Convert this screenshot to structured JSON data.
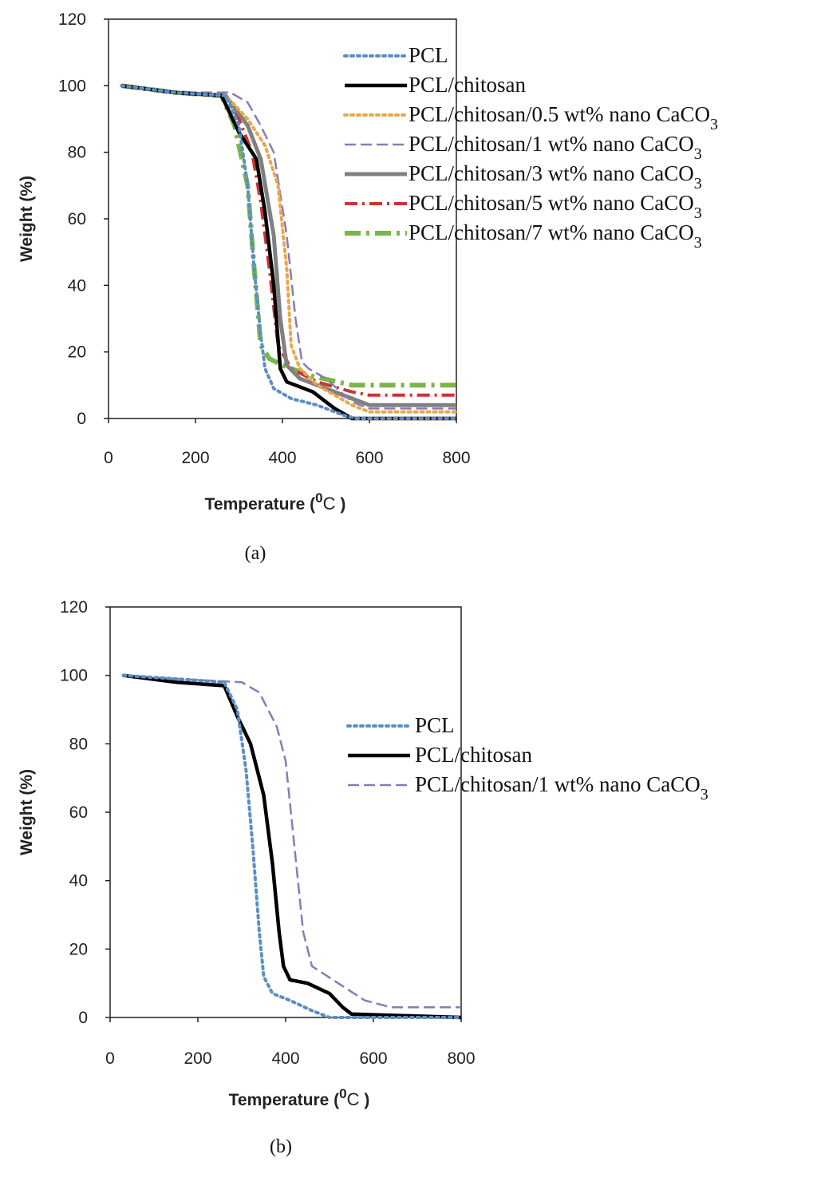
{
  "chart_data": [
    {
      "type": "line",
      "panel_label": "(a)",
      "xlabel": "Temperature (",
      "xlabel_sup": "0",
      "xlabel_unit": "C",
      "xlabel_close": ")",
      "ylabel": "Weight (%)",
      "xlim": [
        0,
        800
      ],
      "ylim": [
        0,
        120
      ],
      "xticks": [
        "0",
        "200",
        "400",
        "600",
        "800"
      ],
      "yticks": [
        "0",
        "20",
        "40",
        "60",
        "80",
        "100",
        "120"
      ],
      "grid": false,
      "legend_position": "top-right",
      "series": [
        {
          "name": "PCL",
          "name_sub": "",
          "color": "#5b8fc4",
          "dash": "dot",
          "x": [
            30,
            150,
            270,
            300,
            320,
            335,
            350,
            360,
            380,
            420,
            480,
            540,
            570,
            800
          ],
          "y": [
            100,
            98,
            97,
            88,
            70,
            45,
            25,
            15,
            9,
            6,
            4,
            1,
            0,
            0
          ]
        },
        {
          "name": "PCL/chitosan",
          "name_sub": "",
          "color": "#000000",
          "dash": "solid",
          "x": [
            30,
            150,
            260,
            300,
            340,
            360,
            380,
            395,
            410,
            430,
            470,
            520,
            560,
            800
          ],
          "y": [
            100,
            98,
            97,
            86,
            78,
            62,
            40,
            15,
            11,
            10,
            8,
            3,
            0,
            0
          ]
        },
        {
          "name": "PCL/chitosan/0.5 wt% nano CaCO",
          "name_sub": "3",
          "color": "#e8a84a",
          "dash": "dot",
          "x": [
            30,
            150,
            270,
            320,
            360,
            390,
            410,
            420,
            440,
            480,
            560,
            600,
            800
          ],
          "y": [
            100,
            98,
            97,
            90,
            82,
            70,
            45,
            22,
            15,
            10,
            4,
            2,
            2
          ]
        },
        {
          "name": "PCL/chitosan/1 wt% nano CaCO",
          "name_sub": "3",
          "color": "#8a7ab8",
          "dash": "dash",
          "x": [
            30,
            150,
            280,
            320,
            350,
            380,
            410,
            430,
            445,
            460,
            500,
            560,
            600,
            800
          ],
          "y": [
            100,
            98,
            98,
            95,
            88,
            80,
            55,
            30,
            17,
            15,
            12,
            5,
            3,
            3
          ]
        },
        {
          "name": "PCL/chitosan/3 wt% nano CaCO",
          "name_sub": "3",
          "color": "#808080",
          "dash": "solid-thick",
          "x": [
            30,
            150,
            270,
            320,
            350,
            380,
            395,
            410,
            440,
            480,
            560,
            600,
            800
          ],
          "y": [
            100,
            98,
            97,
            88,
            78,
            55,
            30,
            16,
            12,
            10,
            6,
            4,
            4
          ]
        },
        {
          "name": "PCL/chitosan/5 wt% nano CaCO",
          "name_sub": "3",
          "color": "#cc3333",
          "dash": "dashdot",
          "x": [
            30,
            150,
            270,
            300,
            330,
            350,
            370,
            390,
            420,
            480,
            560,
            600,
            800
          ],
          "y": [
            100,
            98,
            97,
            90,
            80,
            65,
            45,
            22,
            15,
            11,
            8,
            7,
            7
          ]
        },
        {
          "name": "PCL/chitosan/7 wt% nano CaCO",
          "name_sub": "3",
          "color": "#7ab648",
          "dash": "dashdot-thick",
          "x": [
            30,
            150,
            260,
            290,
            320,
            335,
            350,
            370,
            400,
            460,
            560,
            600,
            800
          ],
          "y": [
            100,
            98,
            97,
            88,
            70,
            45,
            22,
            18,
            16,
            13,
            10,
            10,
            10
          ]
        }
      ]
    },
    {
      "type": "line",
      "panel_label": "(b)",
      "xlabel": "Temperature (",
      "xlabel_sup": "0",
      "xlabel_unit": "C",
      "xlabel_close": ")",
      "ylabel": "Weight (%)",
      "xlim": [
        0,
        800
      ],
      "ylim": [
        0,
        120
      ],
      "xticks": [
        "0",
        "200",
        "400",
        "600",
        "800"
      ],
      "yticks": [
        "0",
        "20",
        "40",
        "60",
        "80",
        "100",
        "120"
      ],
      "grid": false,
      "legend_position": "right",
      "series": [
        {
          "name": "PCL",
          "name_sub": "",
          "color": "#5b8fc4",
          "dash": "dot",
          "x": [
            30,
            150,
            260,
            290,
            310,
            325,
            340,
            350,
            370,
            410,
            460,
            500,
            600,
            800
          ],
          "y": [
            100,
            99,
            98,
            90,
            72,
            50,
            25,
            12,
            7,
            5,
            2,
            0,
            0,
            0
          ]
        },
        {
          "name": "PCL/chitosan",
          "name_sub": "",
          "color": "#000000",
          "dash": "solid",
          "x": [
            30,
            150,
            260,
            290,
            320,
            350,
            370,
            385,
            395,
            410,
            450,
            500,
            530,
            550,
            800
          ],
          "y": [
            100,
            98,
            97,
            88,
            80,
            65,
            45,
            25,
            15,
            11,
            10,
            7,
            3,
            1,
            0
          ]
        },
        {
          "name": "PCL/chitosan/1 wt% nano CaCO",
          "name_sub": "3",
          "color": "#8a7ab8",
          "dash": "dash",
          "x": [
            30,
            150,
            300,
            340,
            380,
            400,
            420,
            440,
            460,
            520,
            580,
            640,
            800
          ],
          "y": [
            100,
            99,
            98,
            95,
            85,
            75,
            50,
            25,
            15,
            10,
            5,
            3,
            3
          ]
        }
      ]
    }
  ]
}
